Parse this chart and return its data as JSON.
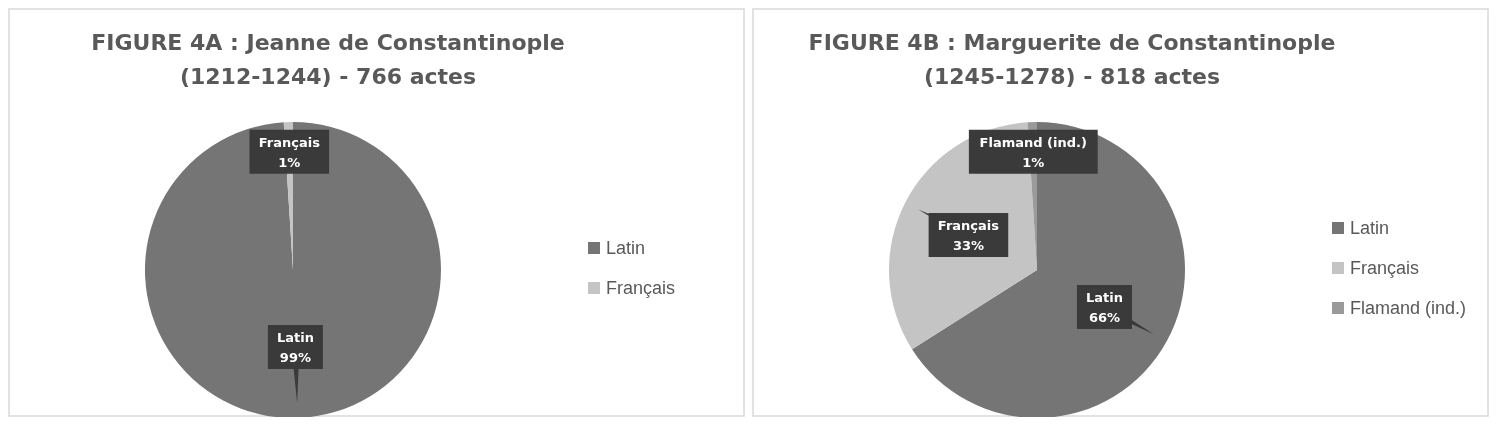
{
  "chart_data": [
    {
      "type": "pie",
      "title": "FIGURE 4A : Jeanne de Constantinople (1212-1244) - 766 actes",
      "categories": [
        "Latin",
        "Français"
      ],
      "values": [
        99,
        1
      ],
      "colors": [
        "#757575",
        "#c4c4c4"
      ],
      "value_labels": [
        "99%",
        "1%"
      ],
      "legend": "right"
    },
    {
      "type": "pie",
      "title": "FIGURE 4B :  Marguerite de Constantinople (1245-1278) - 818 actes",
      "categories": [
        "Latin",
        "Français",
        "Flamand (ind.)"
      ],
      "values": [
        66,
        33,
        1
      ],
      "colors": [
        "#757575",
        "#c4c4c4",
        "#9a9a9a"
      ],
      "value_labels": [
        "66%",
        "33%",
        "1%"
      ],
      "legend": "right"
    }
  ]
}
